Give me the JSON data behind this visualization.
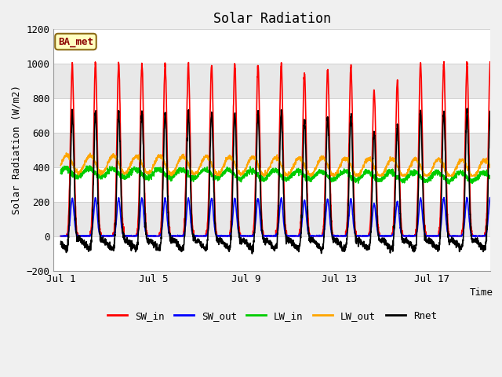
{
  "title": "Solar Radiation",
  "xlabel": "Time",
  "ylabel": "Solar Radiation (W/m2)",
  "station_label": "BA_met",
  "ylim": [
    -200,
    1200
  ],
  "yticks": [
    -200,
    0,
    200,
    400,
    600,
    800,
    1000,
    1200
  ],
  "xtick_positions": [
    0,
    4,
    8,
    12,
    16
  ],
  "xtick_labels": [
    "Jul 1",
    "Jul 5",
    "Jul 9",
    "Jul 13",
    "Jul 17"
  ],
  "series": {
    "SW_in": {
      "color": "#ff0000",
      "lw": 1.2
    },
    "SW_out": {
      "color": "#0000ff",
      "lw": 1.2
    },
    "LW_in": {
      "color": "#00cc00",
      "lw": 1.2
    },
    "LW_out": {
      "color": "#ffa500",
      "lw": 1.2
    },
    "Rnet": {
      "color": "#000000",
      "lw": 1.2
    }
  },
  "n_days": 19,
  "pts_per_day": 144,
  "background_color": "#f0f0f0",
  "plot_bg_color": "#ffffff",
  "figsize": [
    6.4,
    4.8
  ],
  "dpi": 100,
  "band_colors": [
    "#ffffff",
    "#e8e8e8"
  ]
}
